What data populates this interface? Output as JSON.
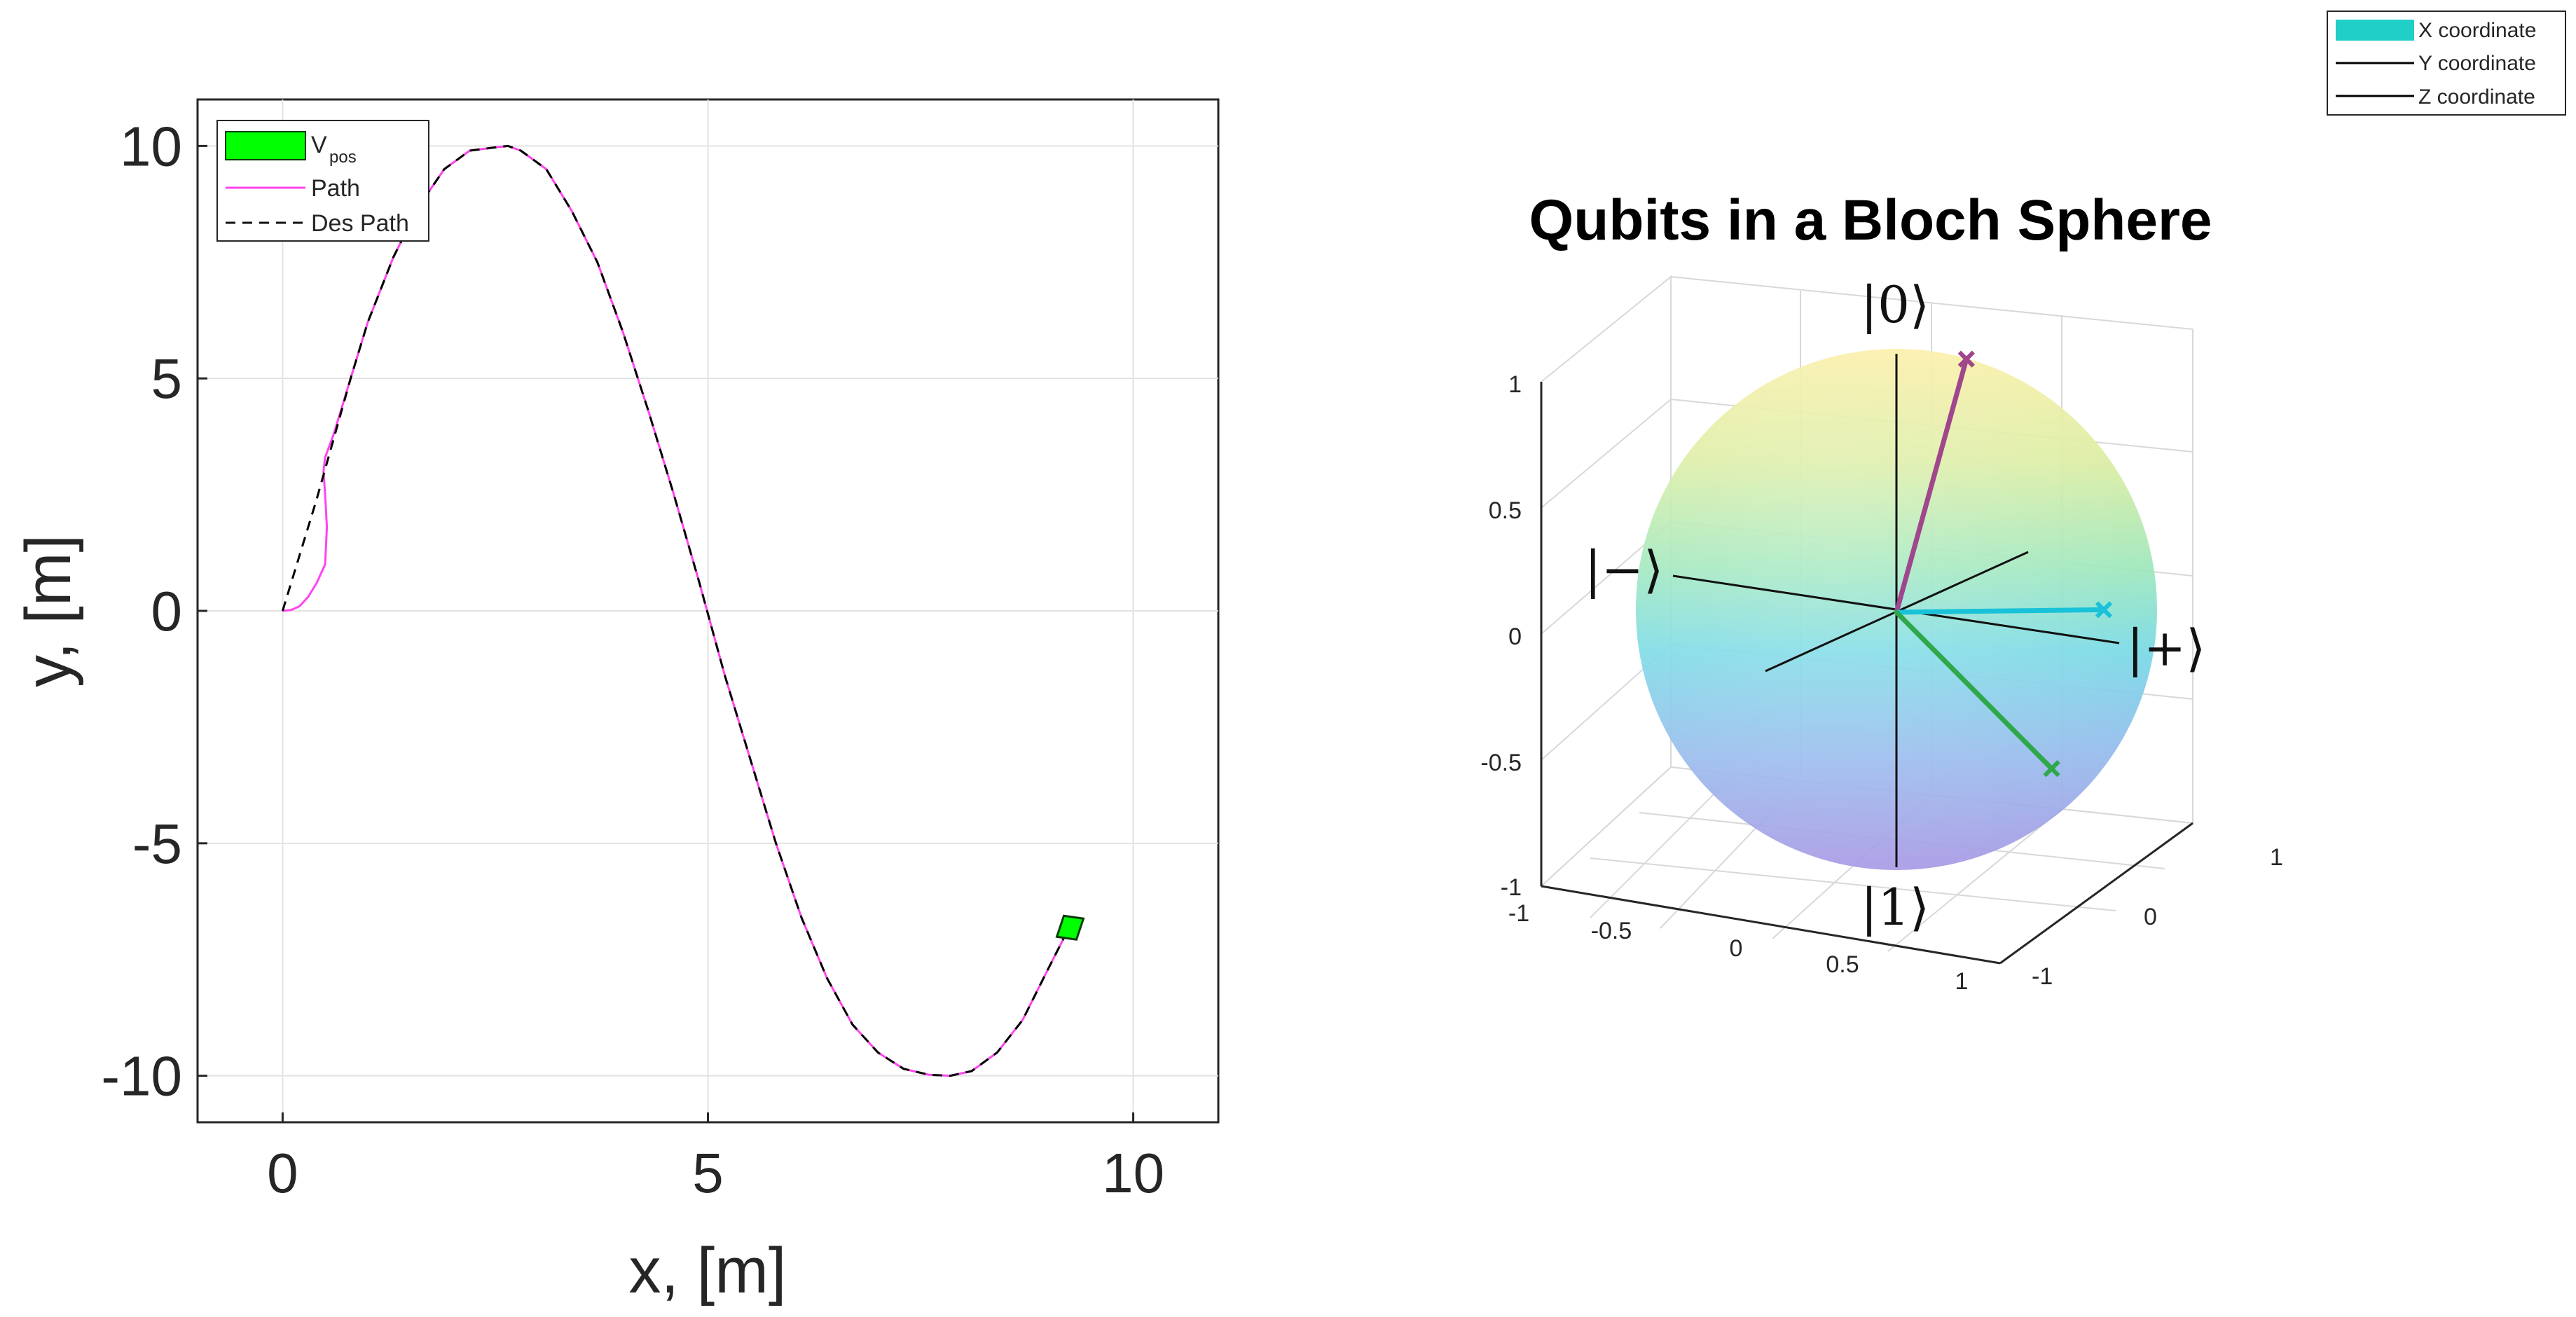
{
  "chart_data": [
    {
      "type": "line",
      "title": "",
      "xlabel": "x, [m]",
      "ylabel": "y, [m]",
      "xlim": [
        -1,
        11
      ],
      "ylim": [
        -11,
        11
      ],
      "xticks": [
        0,
        5,
        10
      ],
      "yticks": [
        10,
        5,
        0,
        -5,
        -10
      ],
      "grid": true,
      "legend_placement": "top-left",
      "legend": [
        {
          "name": "V",
          "subscript": "pos",
          "style": "filled-patch",
          "color": "#00ff00"
        },
        {
          "name": "Path",
          "style": "solid",
          "color": "#ff44ee"
        },
        {
          "name": "Des Path",
          "style": "dashed",
          "color": "#000000"
        }
      ],
      "series": [
        {
          "name": "Path",
          "color": "#ff44ee",
          "x": [
            0,
            0.1,
            0.2,
            0.3,
            0.4,
            0.5,
            0.52,
            0.5,
            0.48,
            0.5,
            0.6,
            0.8,
            1.0,
            1.3,
            1.6,
            1.9,
            2.2,
            2.5,
            2.65,
            2.8,
            3.1,
            3.4,
            3.7,
            4.0,
            4.3,
            4.6,
            4.9,
            5.2,
            5.5,
            5.8,
            6.1,
            6.4,
            6.7,
            7.0,
            7.3,
            7.6,
            7.85,
            8.1,
            8.4,
            8.7,
            9.0,
            9.25
          ],
          "y": [
            0,
            0.02,
            0.1,
            0.3,
            0.6,
            1.0,
            1.8,
            2.5,
            3.0,
            3.3,
            3.8,
            5.0,
            6.2,
            7.6,
            8.7,
            9.5,
            9.9,
            9.97,
            10.0,
            9.9,
            9.5,
            8.6,
            7.5,
            6.0,
            4.3,
            2.5,
            0.6,
            -1.4,
            -3.2,
            -5.0,
            -6.6,
            -7.9,
            -8.9,
            -9.5,
            -9.85,
            -9.98,
            -10.0,
            -9.9,
            -9.5,
            -8.8,
            -7.7,
            -6.8
          ]
        },
        {
          "name": "Des Path",
          "color": "#000000",
          "dash": true,
          "x": [
            0,
            0.2,
            0.4,
            0.6,
            0.8,
            1.0,
            1.3,
            1.6,
            1.9,
            2.2,
            2.5,
            2.65,
            2.8,
            3.1,
            3.4,
            3.7,
            4.0,
            4.3,
            4.6,
            4.9,
            5.2,
            5.5,
            5.8,
            6.1,
            6.4,
            6.7,
            7.0,
            7.3,
            7.6,
            7.85,
            8.1,
            8.4,
            8.7,
            9.0,
            9.25
          ],
          "y": [
            0,
            1.2,
            2.4,
            3.7,
            5.0,
            6.2,
            7.6,
            8.7,
            9.5,
            9.9,
            9.97,
            10.0,
            9.9,
            9.5,
            8.6,
            7.5,
            6.0,
            4.3,
            2.5,
            0.6,
            -1.4,
            -3.2,
            -5.0,
            -6.6,
            -7.9,
            -8.9,
            -9.5,
            -9.85,
            -9.98,
            -10.0,
            -9.9,
            -9.5,
            -8.8,
            -7.7,
            -6.8
          ]
        }
      ],
      "marker": {
        "name": "V",
        "x": 9.25,
        "y": -6.8,
        "color": "#00ff00"
      }
    },
    {
      "type": "scatter",
      "title": "Qubits in a Bloch Sphere",
      "axes_3d": true,
      "xlim": [
        -1,
        1
      ],
      "ylim": [
        -1,
        1
      ],
      "zlim": [
        -1,
        1
      ],
      "xticks": [
        "-1",
        "-0.5",
        "0",
        "0.5",
        "1"
      ],
      "yticks": [
        "-1",
        "0",
        "1"
      ],
      "zticks": [
        "1",
        "0.5",
        "0",
        "-0.5",
        "-1"
      ],
      "grid": true,
      "legend_placement": "top-right",
      "legend": [
        {
          "name": "X coordinate",
          "style": "filled-patch",
          "color": "#1fcfc8"
        },
        {
          "name": "Y coordinate",
          "style": "solid",
          "color": "#000000"
        },
        {
          "name": "Z coordinate",
          "style": "solid",
          "color": "#000000"
        }
      ],
      "state_labels": [
        "|0⟩",
        "|1⟩",
        "|+⟩",
        "|−⟩"
      ],
      "qubits": [
        {
          "color": "#a0468c",
          "x": 0.1,
          "y": 0.35,
          "z": 0.92
        },
        {
          "color": "#19c2d8",
          "x": 0.9,
          "y": 0.05,
          "z": 0.12
        },
        {
          "color": "#2fa84a",
          "x": 0.88,
          "y": -0.3,
          "z": -0.42
        }
      ]
    }
  ]
}
